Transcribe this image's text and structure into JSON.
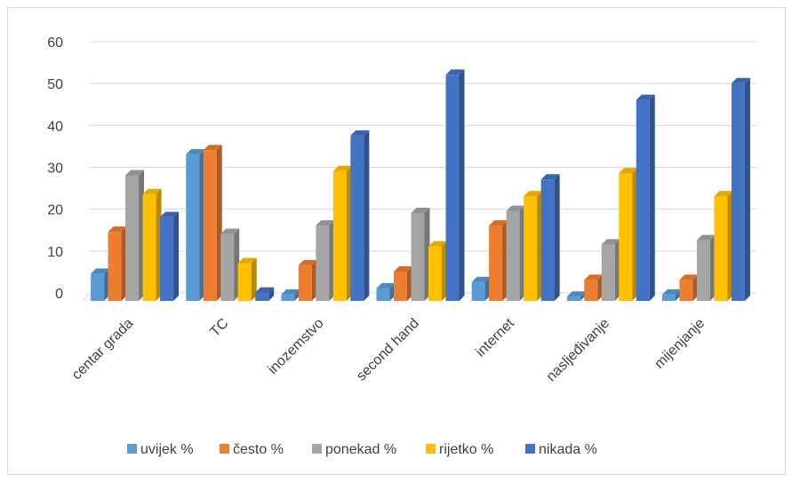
{
  "chart_data": {
    "type": "bar",
    "style": "3d-clustered-column",
    "categories": [
      "centar grada",
      "TC",
      "inozemstvo",
      "second hand",
      "internet",
      "nasljeđivanje",
      "mijenjanje"
    ],
    "series": [
      {
        "name": "uvijek %",
        "color": "#5b9bd5",
        "values": [
          6.5,
          35,
          1.5,
          3,
          4.5,
          1,
          1.5
        ]
      },
      {
        "name": "često %",
        "color": "#ed7d31",
        "values": [
          16.5,
          36,
          8.5,
          7,
          18,
          5,
          5
        ]
      },
      {
        "name": "ponekad %",
        "color": "#a5a5a5",
        "values": [
          30,
          16,
          18,
          21,
          21.5,
          13.5,
          14.5
        ]
      },
      {
        "name": "rijetko %",
        "color": "#ffc000",
        "values": [
          25.5,
          9,
          31,
          13,
          25,
          30.5,
          25
        ]
      },
      {
        "name": "nikada %",
        "color": "#4472c4",
        "values": [
          20,
          2,
          39.5,
          54,
          29,
          48,
          52
        ]
      }
    ],
    "y_ticks": [
      0,
      10,
      20,
      30,
      40,
      50,
      60
    ],
    "ylim": [
      0,
      60
    ],
    "grid": true,
    "legend_position": "bottom"
  }
}
